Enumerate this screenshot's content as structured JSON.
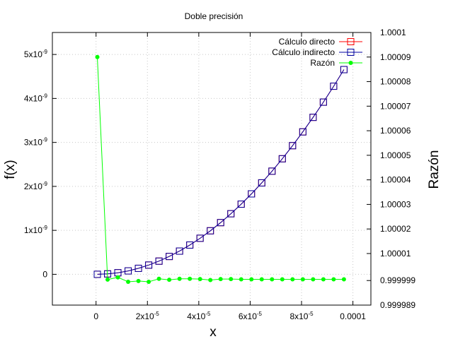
{
  "chart_data": {
    "type": "line",
    "title": "Doble precisión",
    "xlabel": "x",
    "ylabel": "f(x)",
    "y2label": "Razón",
    "xlim": [
      -1.7e-05,
      0.000107
    ],
    "ylim": [
      -7e-10,
      5.5e-09
    ],
    "y2lim": [
      0.999989,
      1.0001
    ],
    "x_ticks": [
      {
        "v": 0,
        "label": "0",
        "sup": ""
      },
      {
        "v": 2e-05,
        "label": "2x10",
        "sup": "-5"
      },
      {
        "v": 4e-05,
        "label": "4x10",
        "sup": "-5"
      },
      {
        "v": 6e-05,
        "label": "6x10",
        "sup": "-5"
      },
      {
        "v": 8e-05,
        "label": "8x10",
        "sup": "-5"
      },
      {
        "v": 0.0001,
        "label": "0.0001",
        "sup": ""
      }
    ],
    "y_ticks": [
      {
        "v": 0,
        "label": "0",
        "sup": ""
      },
      {
        "v": 1e-09,
        "label": "1x10",
        "sup": "-9"
      },
      {
        "v": 2e-09,
        "label": "2x10",
        "sup": "-9"
      },
      {
        "v": 3e-09,
        "label": "3x10",
        "sup": "-9"
      },
      {
        "v": 4e-09,
        "label": "4x10",
        "sup": "-9"
      },
      {
        "v": 5e-09,
        "label": "5x10",
        "sup": "-9"
      }
    ],
    "y2_ticks": [
      {
        "v": 0.999989,
        "label": "0.999989"
      },
      {
        "v": 0.999999,
        "label": "0.999999"
      },
      {
        "v": 1.00001,
        "label": "1.00001"
      },
      {
        "v": 1.00002,
        "label": "1.00002"
      },
      {
        "v": 1.00003,
        "label": "1.00003"
      },
      {
        "v": 1.00004,
        "label": "1.00004"
      },
      {
        "v": 1.00005,
        "label": "1.00005"
      },
      {
        "v": 1.00006,
        "label": "1.00006"
      },
      {
        "v": 1.00007,
        "label": "1.00007"
      },
      {
        "v": 1.00008,
        "label": "1.00008"
      },
      {
        "v": 1.00009,
        "label": "1.00009"
      },
      {
        "v": 1.0001,
        "label": "1.0001"
      }
    ],
    "grid": true,
    "legend_position": "top-right",
    "x": [
      5e-07,
      4.5e-06,
      8.5e-06,
      1.25e-05,
      1.65e-05,
      2.05e-05,
      2.45e-05,
      2.85e-05,
      3.25e-05,
      3.65e-05,
      4.05e-05,
      4.45e-05,
      4.85e-05,
      5.25e-05,
      5.65e-05,
      6.05e-05,
      6.45e-05,
      6.85e-05,
      7.25e-05,
      7.65e-05,
      8.05e-05,
      8.45e-05,
      8.85e-05,
      9.25e-05,
      9.65e-05
    ],
    "series": [
      {
        "name": "Cálculo directo",
        "color": "#ff0000",
        "marker": "open-square",
        "axis": "left",
        "values": [
          1.25e-13,
          1.01e-11,
          3.61e-11,
          7.81e-11,
          1.361e-10,
          2.101e-10,
          3.001e-10,
          4.061e-10,
          5.281e-10,
          6.661e-10,
          8.201e-10,
          9.901e-10,
          1.176e-09,
          1.378e-09,
          1.596e-09,
          1.83e-09,
          2.08e-09,
          2.346e-09,
          2.628e-09,
          2.926e-09,
          3.24e-09,
          3.57e-09,
          3.916e-09,
          4.278e-09,
          4.656e-09
        ]
      },
      {
        "name": "Cálculo indirecto",
        "color": "#0000a0",
        "marker": "open-square",
        "axis": "left",
        "values": [
          1.25e-13,
          1.01e-11,
          3.61e-11,
          7.81e-11,
          1.361e-10,
          2.101e-10,
          3.001e-10,
          4.061e-10,
          5.281e-10,
          6.661e-10,
          8.201e-10,
          9.901e-10,
          1.176e-09,
          1.378e-09,
          1.596e-09,
          1.83e-09,
          2.08e-09,
          2.346e-09,
          2.628e-09,
          2.926e-09,
          3.24e-09,
          3.57e-09,
          3.916e-09,
          4.278e-09,
          4.656e-09
        ]
      },
      {
        "name": "Razón",
        "color": "#00ff00",
        "marker": "filled-circle",
        "axis": "right",
        "values": [
          1.00009,
          0.9999994,
          1.0000003,
          0.9999985,
          0.9999988,
          0.9999985,
          0.9999997,
          0.9999993,
          0.9999997,
          0.9999997,
          0.9999996,
          0.9999992,
          0.9999996,
          0.9999996,
          0.9999995,
          0.9999995,
          0.9999995,
          0.9999995,
          0.9999995,
          0.9999995,
          0.9999995,
          0.9999995,
          0.9999995,
          0.9999995,
          0.9999995
        ]
      }
    ]
  }
}
